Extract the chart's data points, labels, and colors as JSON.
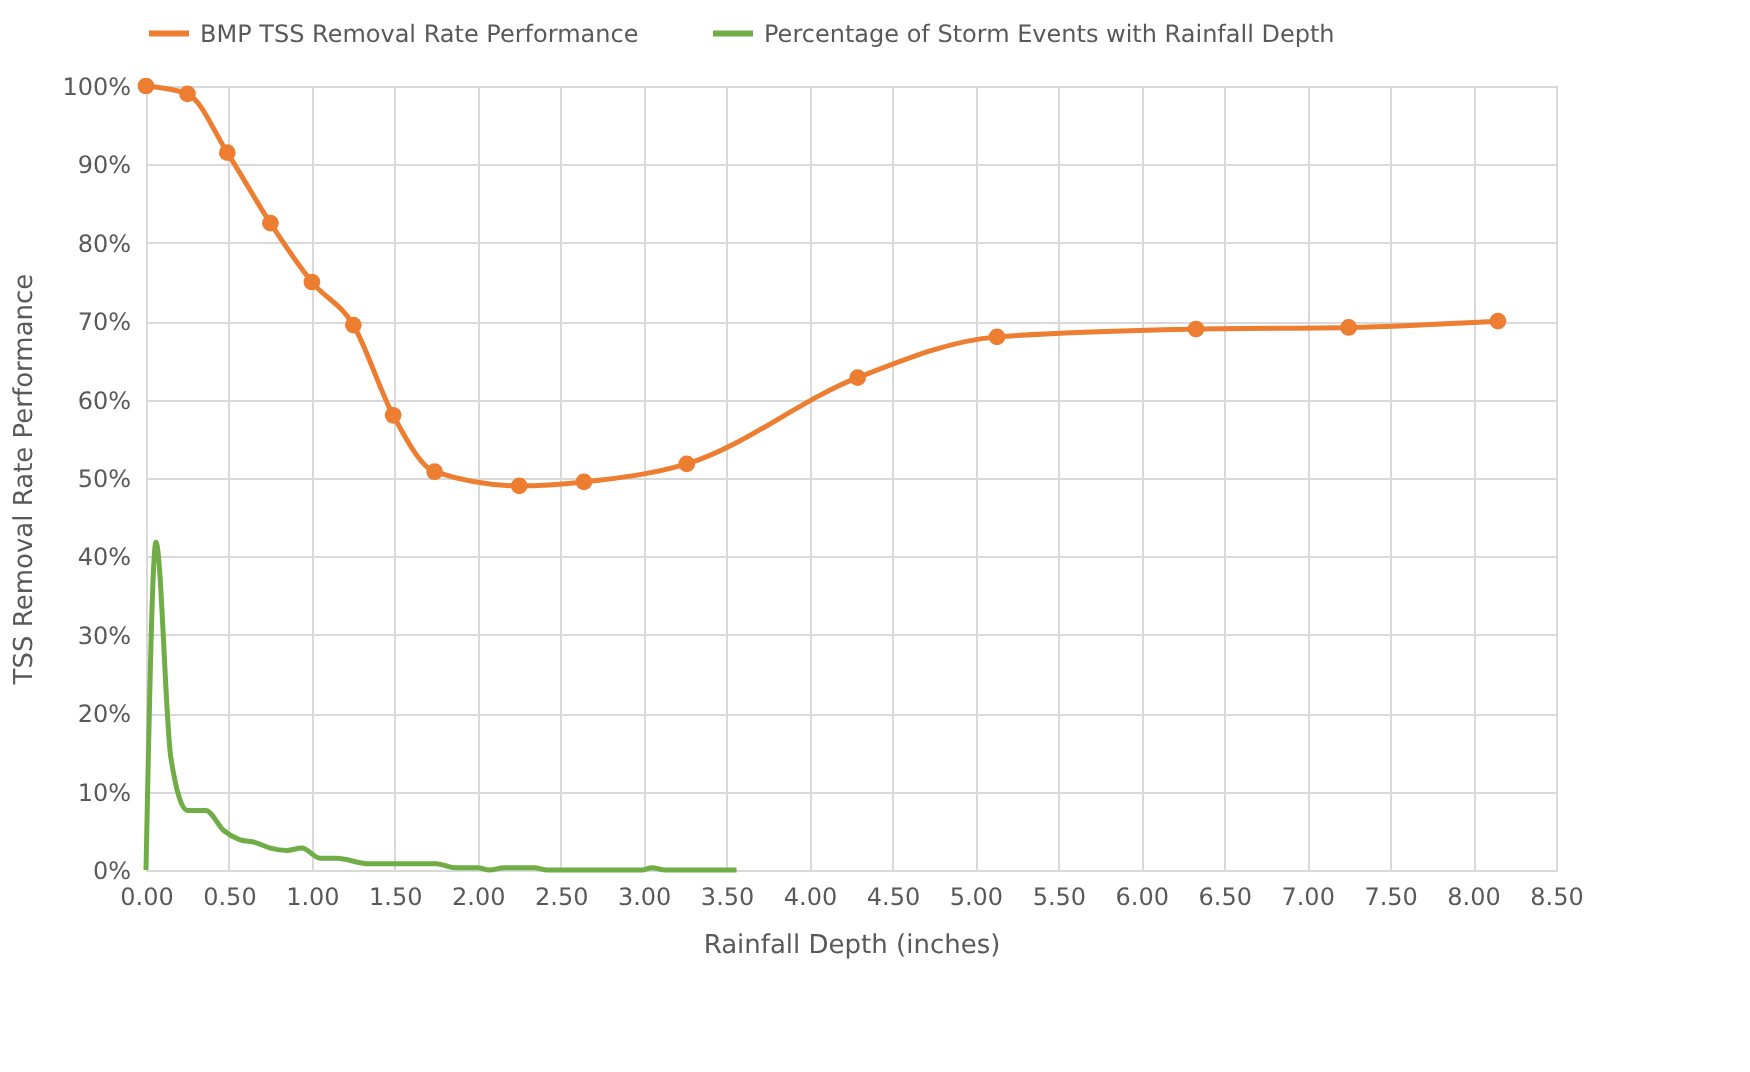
{
  "chart_data": {
    "type": "line",
    "xlabel": "Rainfall Depth (inches)",
    "ylabel": "TSS Removal Rate Performance",
    "series": [
      {
        "name": "BMP TSS Removal Rate Performance",
        "color": "#ed7d31",
        "marker": "circle",
        "x": [
          0,
          0.25,
          0.49,
          0.75,
          1.0,
          1.25,
          1.49,
          1.74,
          2.25,
          2.64,
          3.26,
          4.29,
          5.13,
          6.33,
          7.25,
          8.15
        ],
        "values": [
          100,
          99,
          91.5,
          82.5,
          75,
          69.5,
          58,
          50.8,
          49,
          49.5,
          51.8,
          62.8,
          68,
          69,
          69.2,
          70
        ]
      },
      {
        "name": "Percentage of Storm Events with Rainfall Depth",
        "color": "#70ad47",
        "marker": "none",
        "x": [
          0,
          0.06,
          0.15,
          0.25,
          0.36,
          0.47,
          0.56,
          0.66,
          0.75,
          0.85,
          0.94,
          1.05,
          1.15,
          1.34,
          1.75,
          1.86,
          2.0,
          2.07,
          2.16,
          2.34,
          2.42,
          2.99,
          3.05,
          3.13,
          3.56
        ],
        "values": [
          0,
          41.8,
          14.3,
          7.6,
          7.6,
          5,
          3.9,
          3.5,
          2.8,
          2.5,
          2.8,
          1.5,
          1.5,
          0.8,
          0.8,
          0.3,
          0.3,
          0,
          0.3,
          0.3,
          0,
          0,
          0.3,
          0,
          0
        ]
      }
    ],
    "xlim": [
      0,
      8.5
    ],
    "xticks": [
      {
        "value": 0,
        "label": "0.00"
      },
      {
        "value": 0.5,
        "label": "0.50"
      },
      {
        "value": 1,
        "label": "1.00"
      },
      {
        "value": 1.5,
        "label": "1.50"
      },
      {
        "value": 2,
        "label": "2.00"
      },
      {
        "value": 2.5,
        "label": "2.50"
      },
      {
        "value": 3,
        "label": "3.00"
      },
      {
        "value": 3.5,
        "label": "3.50"
      },
      {
        "value": 4,
        "label": "4.00"
      },
      {
        "value": 4.5,
        "label": "4.50"
      },
      {
        "value": 5,
        "label": "5.00"
      },
      {
        "value": 5.5,
        "label": "5.50"
      },
      {
        "value": 6,
        "label": "6.00"
      },
      {
        "value": 6.5,
        "label": "6.50"
      },
      {
        "value": 7,
        "label": "7.00"
      },
      {
        "value": 7.5,
        "label": "7.50"
      },
      {
        "value": 8,
        "label": "8.00"
      },
      {
        "value": 8.5,
        "label": "8.50"
      }
    ],
    "ylim": [
      0,
      100
    ],
    "yticks": [
      {
        "value": 0,
        "label": "0%"
      },
      {
        "value": 10,
        "label": "10%"
      },
      {
        "value": 20,
        "label": "20%"
      },
      {
        "value": 30,
        "label": "30%"
      },
      {
        "value": 40,
        "label": "40%"
      },
      {
        "value": 50,
        "label": "50%"
      },
      {
        "value": 60,
        "label": "60%"
      },
      {
        "value": 70,
        "label": "70%"
      },
      {
        "value": 80,
        "label": "80%"
      },
      {
        "value": 90,
        "label": "90%"
      },
      {
        "value": 100,
        "label": "100%"
      }
    ],
    "grid": true,
    "legend": "top",
    "line_style": "solid"
  }
}
